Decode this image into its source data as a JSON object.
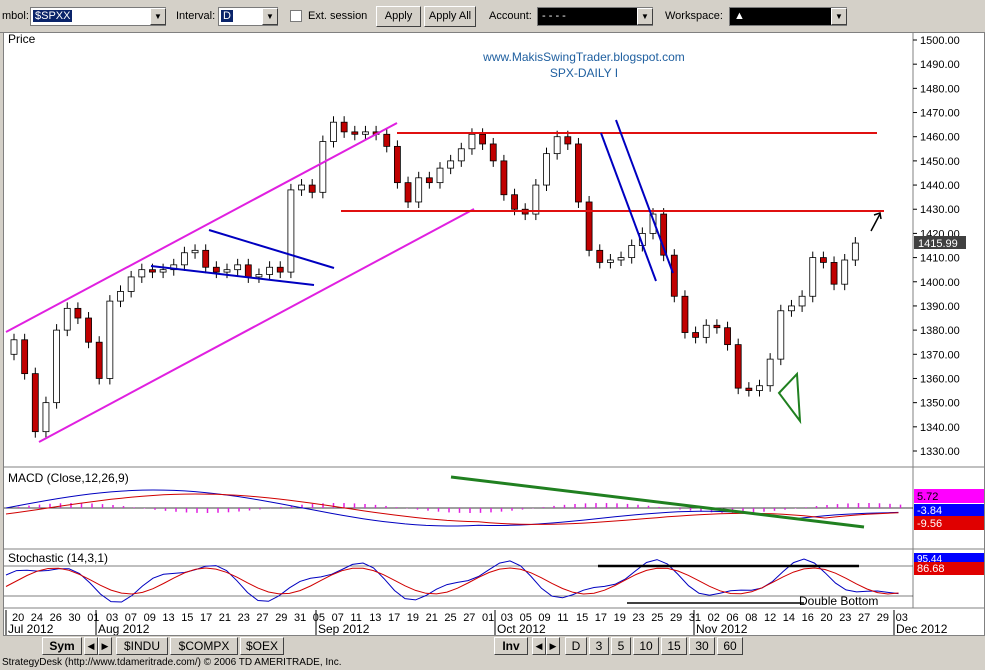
{
  "toolbar": {
    "symbol_label": "mbol:",
    "symbol_value": "$SPXX",
    "interval_label": "Interval:",
    "interval_value": "D",
    "ext_session_label": "Ext. session",
    "apply_label": "Apply",
    "apply_all_label": "Apply All",
    "account_label": "Account:",
    "account_value": "-  -  -  -",
    "workspace_label": "Workspace:",
    "workspace_value": "▲"
  },
  "chart": {
    "price_label": "Price",
    "watermark_url": "www.MakisSwingTrader.blogspot.com",
    "watermark_title": "SPX-DAILY I",
    "last_price": "1415.99",
    "price_ticks": [
      "1500.00",
      "1490.00",
      "1480.00",
      "1470.00",
      "1460.00",
      "1450.00",
      "1440.00",
      "1430.00",
      "1420.00",
      "1410.00",
      "1400.00",
      "1390.00",
      "1380.00",
      "1370.00",
      "1360.00",
      "1350.00",
      "1340.00",
      "1330.00"
    ],
    "macd_label": "MACD (Close,12,26,9)",
    "macd_values": [
      "5.72",
      "-3.84",
      "-9.56"
    ],
    "stoch_label": "Stochastic (14,3,1)",
    "stoch_values": [
      "95.44",
      "86.68"
    ],
    "double_bottom_label": "Double Bottom",
    "day_ticks": [
      "20",
      "24",
      "26",
      "30",
      "01",
      "03",
      "07",
      "09",
      "13",
      "15",
      "17",
      "21",
      "23",
      "27",
      "29",
      "31",
      "05",
      "07",
      "11",
      "13",
      "17",
      "19",
      "21",
      "25",
      "27",
      "01",
      "03",
      "05",
      "09",
      "11",
      "15",
      "17",
      "19",
      "23",
      "25",
      "29",
      "31",
      "02",
      "06",
      "08",
      "12",
      "14",
      "16",
      "20",
      "23",
      "27",
      "29",
      "03"
    ],
    "month_labels": [
      "Jul 2012",
      "Aug 2012",
      "Sep 2012",
      "Oct 2012",
      "Nov 2012",
      "Dec 2012"
    ],
    "colors": {
      "up_candle": "#ffffff",
      "down_candle": "#c00000",
      "channel": "#e020e0",
      "resistance": "#e01010",
      "trend_blue": "#0000c0",
      "macd_line": "#0000c0",
      "signal_line": "#d00000",
      "histogram": "#e020e0",
      "divergence": "#208020"
    }
  },
  "tabs": {
    "left": [
      "Sym",
      "$INDU",
      "$COMPX",
      "$OEX"
    ],
    "inv": "Inv",
    "intervals": [
      "D",
      "3",
      "5",
      "10",
      "15",
      "30",
      "60"
    ]
  },
  "status": "StrategyDesk (http://www.tdameritrade.com/) © 2006 TD AMERITRADE, Inc."
}
